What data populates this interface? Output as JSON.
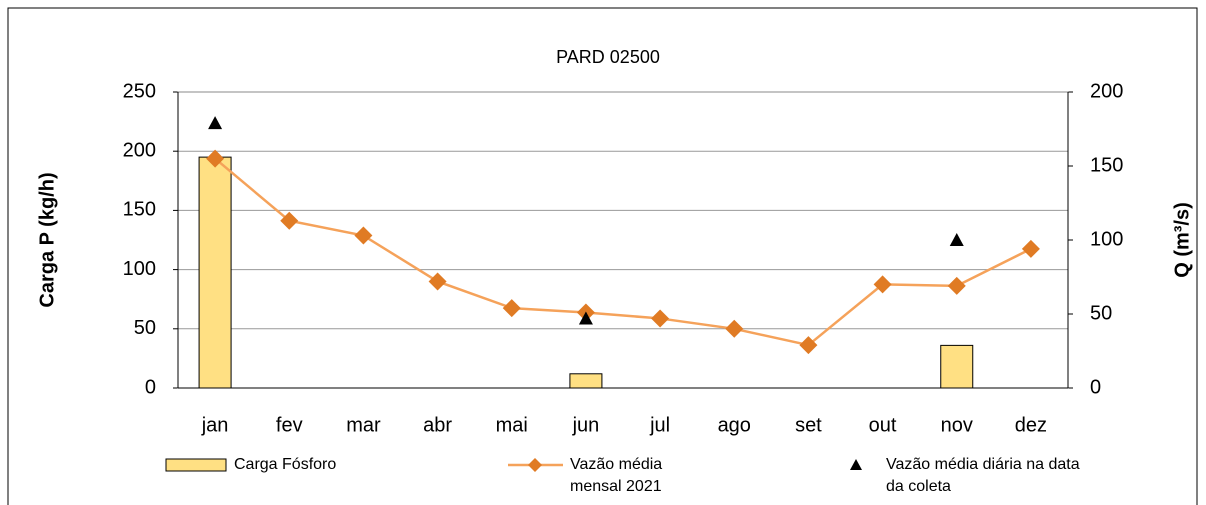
{
  "chart_data": {
    "type": "bar-line",
    "title": "PARD 02500",
    "ylabel": "Carga P (kg/h)",
    "y2label": "Q (m³/s)",
    "categories": [
      "jan",
      "fev",
      "mar",
      "abr",
      "mai",
      "jun",
      "jul",
      "ago",
      "set",
      "out",
      "nov",
      "dez"
    ],
    "ylim": [
      0,
      250
    ],
    "yticks": [
      0,
      50,
      100,
      150,
      200,
      250
    ],
    "y2lim": [
      0,
      200
    ],
    "y2ticks": [
      0,
      50,
      100,
      150,
      200
    ],
    "grid": true,
    "series": [
      {
        "name": "Carga Fósforo",
        "type": "bar",
        "color": "#ffe083",
        "values": [
          195,
          null,
          null,
          null,
          null,
          12,
          null,
          null,
          null,
          null,
          36,
          null
        ]
      },
      {
        "name": "Vazão média mensal 2021",
        "type": "line",
        "axis": "y2",
        "color": "#e07b24",
        "values": [
          155,
          113,
          103,
          72,
          54,
          51,
          47,
          40,
          29,
          70,
          69,
          94
        ]
      },
      {
        "name": "Vazão média diária na data da coleta",
        "type": "scatter",
        "axis": "y2",
        "color": "#000000",
        "values": [
          179,
          null,
          null,
          null,
          null,
          47,
          null,
          null,
          null,
          null,
          100,
          null
        ]
      }
    ]
  }
}
